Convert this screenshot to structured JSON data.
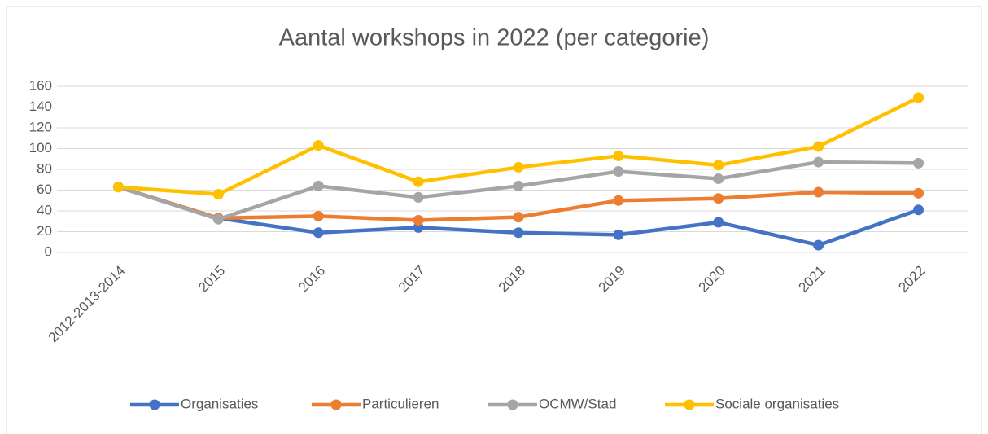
{
  "chart_data": {
    "type": "line",
    "title": "Aantal workshops in 2022 (per categorie)",
    "categories": [
      "2012-2013-2014",
      "2015",
      "2016",
      "2017",
      "2018",
      "2019",
      "2020",
      "2021",
      "2022"
    ],
    "series": [
      {
        "name": "Organisaties",
        "color": "#4472c4",
        "values": [
          63,
          33,
          19,
          24,
          19,
          17,
          29,
          7,
          41
        ]
      },
      {
        "name": "Particulieren",
        "color": "#ed7d31",
        "values": [
          63,
          33,
          35,
          31,
          34,
          50,
          52,
          58,
          57
        ]
      },
      {
        "name": "OCMW/Stad",
        "color": "#a5a5a5",
        "values": [
          63,
          32,
          64,
          53,
          64,
          78,
          71,
          87,
          86
        ]
      },
      {
        "name": "Sociale organisaties",
        "color": "#ffc000",
        "values": [
          63,
          56,
          103,
          68,
          82,
          93,
          84,
          102,
          149
        ]
      }
    ],
    "ylim": [
      0,
      160
    ],
    "yticks": [
      0,
      20,
      40,
      60,
      80,
      100,
      120,
      140,
      160
    ],
    "grid": true,
    "legend": "bottom"
  }
}
